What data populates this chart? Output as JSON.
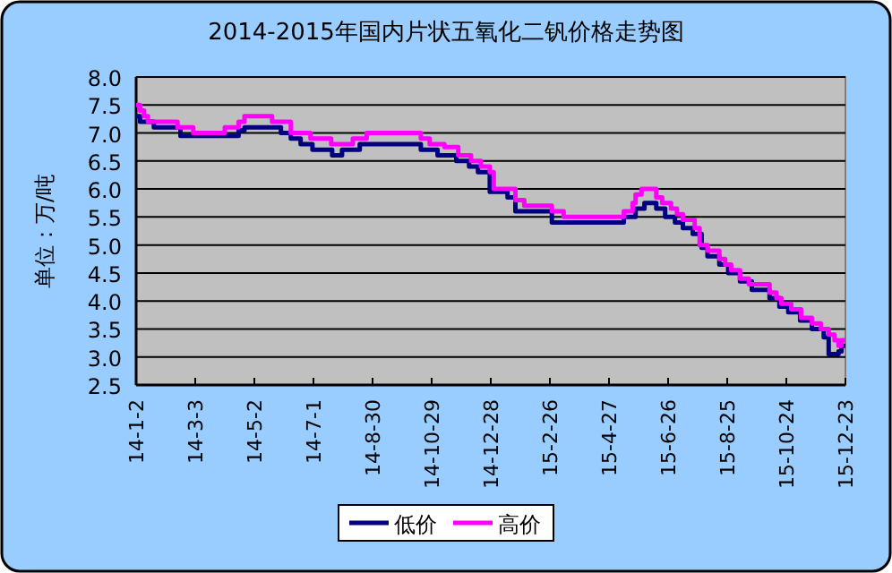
{
  "chart_data": {
    "type": "step",
    "title": "2014-2015年国内片状五氧化二钒价格走势图",
    "ylabel": "单位：万/吨",
    "xlim": [
      "2014-01-02",
      "2015-12-23"
    ],
    "xticks": [
      {
        "value": "2014-01-02",
        "label": "14-1-2"
      },
      {
        "value": "2014-03-03",
        "label": "14-3-3"
      },
      {
        "value": "2014-05-02",
        "label": "14-5-2"
      },
      {
        "value": "2014-07-01",
        "label": "14-7-1"
      },
      {
        "value": "2014-08-30",
        "label": "14-8-30"
      },
      {
        "value": "2014-10-29",
        "label": "14-10-29"
      },
      {
        "value": "2014-12-28",
        "label": "14-12-28"
      },
      {
        "value": "2015-02-26",
        "label": "15-2-26"
      },
      {
        "value": "2015-04-27",
        "label": "15-4-27"
      },
      {
        "value": "2015-06-26",
        "label": "15-6-26"
      },
      {
        "value": "2015-08-25",
        "label": "15-8-25"
      },
      {
        "value": "2015-10-24",
        "label": "15-10-24"
      },
      {
        "value": "2015-12-23",
        "label": "15-12-23"
      }
    ],
    "ylim": [
      2.5,
      8.0
    ],
    "yticks": [
      {
        "value": 2.5,
        "label": "2.5"
      },
      {
        "value": 3.0,
        "label": "3.0"
      },
      {
        "value": 3.5,
        "label": "3.5"
      },
      {
        "value": 4.0,
        "label": "4.0"
      },
      {
        "value": 4.5,
        "label": "4.5"
      },
      {
        "value": 5.0,
        "label": "5.0"
      },
      {
        "value": 5.5,
        "label": "5.5"
      },
      {
        "value": 6.0,
        "label": "6.0"
      },
      {
        "value": 6.5,
        "label": "6.5"
      },
      {
        "value": 7.0,
        "label": "7.0"
      },
      {
        "value": 7.5,
        "label": "7.5"
      },
      {
        "value": 8.0,
        "label": "8.0"
      }
    ],
    "grid": "y",
    "legend": "bottom",
    "series": [
      {
        "name": "低价",
        "color": "#000080",
        "x": [
          "2014-01-02",
          "2014-01-06",
          "2014-01-20",
          "2014-02-16",
          "2014-04-16",
          "2014-04-22",
          "2014-05-29",
          "2014-06-08",
          "2014-06-18",
          "2014-06-30",
          "2014-07-20",
          "2014-07-30",
          "2014-08-17",
          "2014-10-18",
          "2014-11-04",
          "2014-11-23",
          "2014-12-06",
          "2014-12-15",
          "2014-12-27",
          "2015-01-14",
          "2015-01-22",
          "2015-02-28",
          "2015-05-12",
          "2015-05-24",
          "2015-06-02",
          "2015-06-14",
          "2015-06-23",
          "2015-07-03",
          "2015-07-11",
          "2015-07-21",
          "2015-07-30",
          "2015-08-05",
          "2015-08-17",
          "2015-08-26",
          "2015-09-07",
          "2015-09-19",
          "2015-10-07",
          "2015-10-17",
          "2015-10-26",
          "2015-11-07",
          "2015-11-19",
          "2015-12-01",
          "2015-12-06",
          "2015-12-16",
          "2015-12-19",
          "2015-12-23"
        ],
        "values": [
          7.3,
          7.2,
          7.1,
          6.95,
          7.05,
          7.1,
          7.0,
          6.9,
          6.8,
          6.7,
          6.6,
          6.7,
          6.8,
          6.7,
          6.6,
          6.5,
          6.4,
          6.3,
          5.95,
          5.85,
          5.6,
          5.4,
          5.5,
          5.65,
          5.75,
          5.65,
          5.5,
          5.4,
          5.3,
          5.2,
          4.95,
          4.8,
          4.65,
          4.5,
          4.35,
          4.2,
          4.05,
          3.9,
          3.8,
          3.65,
          3.5,
          3.35,
          3.05,
          3.1,
          3.2,
          3.2
        ]
      },
      {
        "name": "高价",
        "color": "#ff00ff",
        "x": [
          "2014-01-02",
          "2014-01-06",
          "2014-01-10",
          "2014-01-14",
          "2014-02-13",
          "2014-03-01",
          "2014-04-02",
          "2014-04-16",
          "2014-04-22",
          "2014-05-20",
          "2014-06-08",
          "2014-06-28",
          "2014-07-19",
          "2014-08-10",
          "2014-08-24",
          "2014-10-18",
          "2014-10-27",
          "2014-11-11",
          "2014-11-25",
          "2014-12-08",
          "2014-12-18",
          "2014-12-27",
          "2014-12-31",
          "2015-01-22",
          "2015-01-31",
          "2015-02-28",
          "2015-03-12",
          "2015-05-12",
          "2015-05-21",
          "2015-05-24",
          "2015-05-30",
          "2015-06-14",
          "2015-06-20",
          "2015-06-29",
          "2015-07-05",
          "2015-07-11",
          "2015-07-23",
          "2015-07-28",
          "2015-08-05",
          "2015-08-17",
          "2015-08-23",
          "2015-08-29",
          "2015-09-07",
          "2015-09-16",
          "2015-10-07",
          "2015-10-14",
          "2015-10-19",
          "2015-10-29",
          "2015-11-08",
          "2015-11-19",
          "2015-11-28",
          "2015-12-06",
          "2015-12-12",
          "2015-12-16",
          "2015-12-19",
          "2015-12-23"
        ],
        "values": [
          7.5,
          7.4,
          7.3,
          7.2,
          7.1,
          7.0,
          7.1,
          7.2,
          7.3,
          7.2,
          7.0,
          6.9,
          6.8,
          6.9,
          7.0,
          6.9,
          6.8,
          6.75,
          6.6,
          6.5,
          6.4,
          6.3,
          6.0,
          5.8,
          5.7,
          5.6,
          5.5,
          5.6,
          5.75,
          5.9,
          6.0,
          5.85,
          5.75,
          5.65,
          5.55,
          5.45,
          5.3,
          5.0,
          4.9,
          4.75,
          4.65,
          4.55,
          4.4,
          4.3,
          4.15,
          4.05,
          3.95,
          3.85,
          3.7,
          3.6,
          3.5,
          3.4,
          3.3,
          3.2,
          3.3,
          3.3
        ]
      }
    ]
  }
}
